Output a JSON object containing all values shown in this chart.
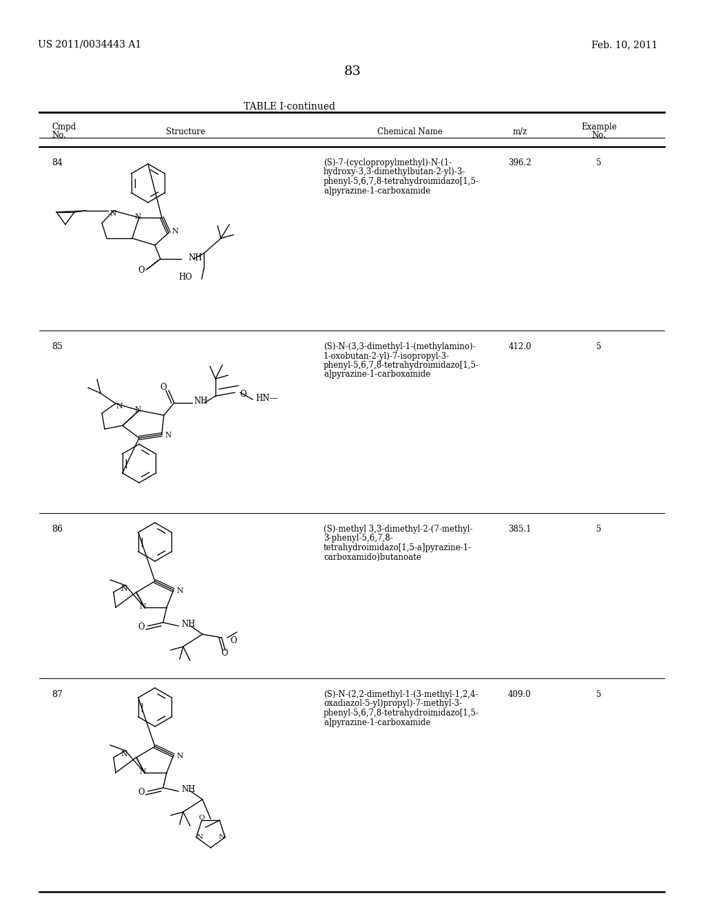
{
  "page_number": "83",
  "left_header": "US 2011/0034443 A1",
  "right_header": "Feb. 10, 2011",
  "table_title": "TABLE I-continued",
  "rows": [
    {
      "cmpd_no": "84",
      "chem_name": "(S)-7-(cyclopropylmethyl)-N-(1-\nhydroxy-3,3-dimethylbutan-2-yl)-3-\nphenyl-5,6,7,8-tetrahydroimidazo[1,5-\na]pyrazine-1-carboxamide",
      "mz": "396.2",
      "example_no": "5"
    },
    {
      "cmpd_no": "85",
      "chem_name": "(S)-N-(3,3-dimethyl-1-(methylamino)-\n1-oxobutan-2-yl)-7-isopropyl-3-\nphenyl-5,6,7,8-tetrahydroimidazo[1,5-\na]pyrazine-1-carboxamide",
      "mz": "412.0",
      "example_no": "5"
    },
    {
      "cmpd_no": "86",
      "chem_name": "(S)-methyl 3,3-dimethyl-2-(7-methyl-\n3-phenyl-5,6,7,8-\ntetrahydroimidazo[1,5-a]pyrazine-1-\ncarboxamido)butanoate",
      "mz": "385.1",
      "example_no": "5"
    },
    {
      "cmpd_no": "87",
      "chem_name": "(S)-N-(2,2-dimethyl-1-(3-methyl-1,2,4-\noxadiazol-5-yl)propyl)-7-methyl-3-\nphenyl-5,6,7,8-tetrahydroimidazo[1,5-\na]pyrazine-1-carboxamide",
      "mz": "409.0",
      "example_no": "5"
    }
  ],
  "background_color": "#ffffff"
}
